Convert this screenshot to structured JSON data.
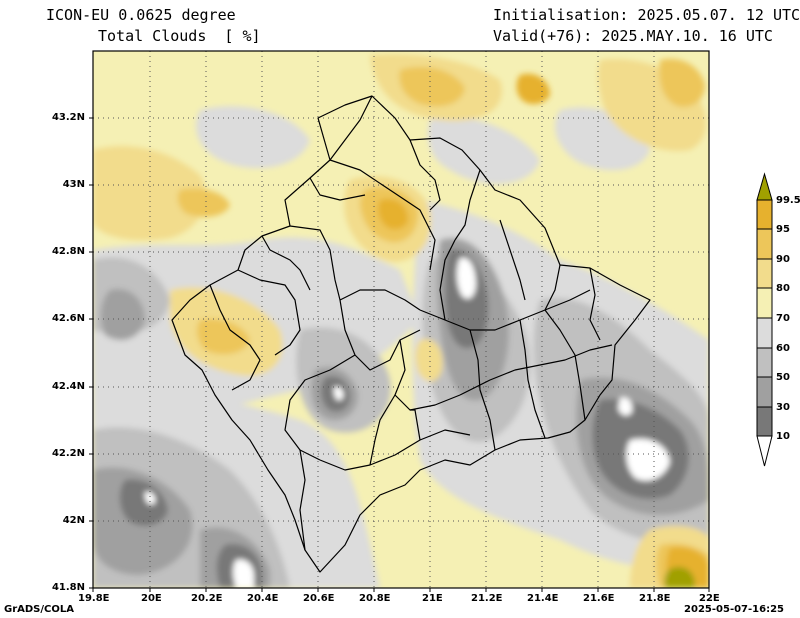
{
  "header": {
    "model": "ICON-EU 0.0625 degree",
    "field": "Total Clouds  [ %]",
    "init": "Initialisation: 2025.05.07. 12 UTC",
    "valid": "Valid(+76): 2025.MAY.10. 16 UTC"
  },
  "axes": {
    "lat_labels": [
      "43.2N",
      "43N",
      "42.8N",
      "42.6N",
      "42.4N",
      "42.2N",
      "42N",
      "41.8N"
    ],
    "lon_labels": [
      "19.8E",
      "20E",
      "20.2E",
      "20.4E",
      "20.6E",
      "20.8E",
      "21E",
      "21.2E",
      "21.4E",
      "21.6E",
      "21.8E",
      "22E"
    ],
    "lat_range": [
      41.8,
      43.4
    ],
    "lon_range": [
      19.8,
      22.0
    ]
  },
  "legend": {
    "labels": [
      "99.5",
      "95",
      "90",
      "80",
      "70",
      "60",
      "50",
      "30",
      "10"
    ],
    "colors": [
      "#a0a000",
      "#e6b12e",
      "#edc65a",
      "#f2dc8c",
      "#f5f0b4",
      "#dcdcdc",
      "#c0c0c0",
      "#a0a0a0",
      "#787878",
      "#505050",
      "#ffffff"
    ]
  },
  "footer": {
    "left": "GrADS/COLA",
    "right": "2025-05-07-16:25"
  }
}
